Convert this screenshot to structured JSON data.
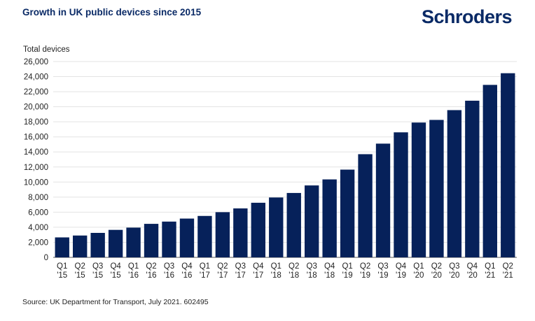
{
  "header": {
    "title": "Growth in UK public devices since 2015",
    "logo_text": "Schroders"
  },
  "footer": {
    "source": "Source: UK Department for Transport, July 2021. 602495"
  },
  "colors": {
    "bar": "#06215a",
    "title": "#0a2a66"
  },
  "chart_data": {
    "type": "bar",
    "title": "Growth in UK public devices since 2015",
    "ylabel": "Total devices",
    "xlabel": "",
    "ylim": [
      0,
      26000
    ],
    "y_ticks": [
      0,
      2000,
      4000,
      6000,
      8000,
      10000,
      12000,
      14000,
      16000,
      18000,
      20000,
      22000,
      24000,
      26000
    ],
    "y_tick_labels": [
      "0",
      "2,000",
      "4,000",
      "6,000",
      "8,000",
      "10,000",
      "12,000",
      "14,000",
      "16,000",
      "18,000",
      "20,000",
      "22,000",
      "24,000",
      "26,000"
    ],
    "grid": true,
    "categories": [
      [
        "Q1",
        "'15"
      ],
      [
        "Q2",
        "'15"
      ],
      [
        "Q3",
        "'15"
      ],
      [
        "Q4",
        "'15"
      ],
      [
        "Q1",
        "'16"
      ],
      [
        "Q2",
        "'16"
      ],
      [
        "Q3",
        "'16"
      ],
      [
        "Q4",
        "'16"
      ],
      [
        "Q1",
        "'17"
      ],
      [
        "Q2",
        "'17"
      ],
      [
        "Q3",
        "'17"
      ],
      [
        "Q4",
        "'17"
      ],
      [
        "Q1",
        "'18"
      ],
      [
        "Q2",
        "'18"
      ],
      [
        "Q3",
        "'18"
      ],
      [
        "Q4",
        "'18"
      ],
      [
        "Q1",
        "'19"
      ],
      [
        "Q2",
        "'19"
      ],
      [
        "Q3",
        "'19"
      ],
      [
        "Q4",
        "'19"
      ],
      [
        "Q1",
        "'20"
      ],
      [
        "Q2",
        "'20"
      ],
      [
        "Q3",
        "'20"
      ],
      [
        "Q4",
        "'20"
      ],
      [
        "Q1",
        "'21"
      ],
      [
        "Q2",
        "'21"
      ]
    ],
    "values": [
      2650,
      2900,
      3250,
      3650,
      3950,
      4450,
      4750,
      5150,
      5500,
      6000,
      6500,
      7250,
      7950,
      8550,
      9550,
      10350,
      11650,
      13700,
      15100,
      16600,
      17900,
      18250,
      19550,
      20800,
      22900,
      24450
    ]
  }
}
